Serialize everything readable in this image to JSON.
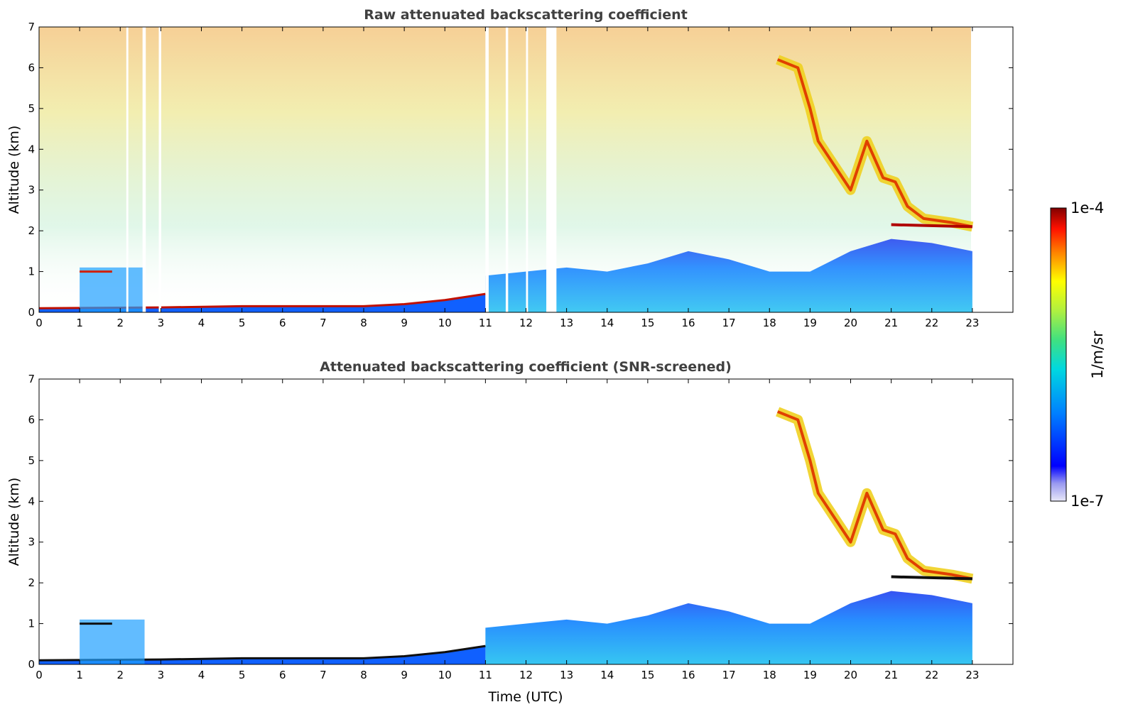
{
  "chart_data": [
    {
      "type": "heatmap",
      "title": "Raw attenuated backscattering coefficient",
      "xlabel": "",
      "ylabel": "Altitude (km)",
      "xlim": [
        0,
        24
      ],
      "ylim": [
        0,
        7
      ],
      "xticks": [
        "0",
        "1",
        "2",
        "3",
        "4",
        "5",
        "6",
        "7",
        "8",
        "9",
        "10",
        "11",
        "12",
        "13",
        "14",
        "15",
        "16",
        "17",
        "18",
        "19",
        "20",
        "21",
        "22",
        "23"
      ],
      "yticks": [
        "0",
        "1",
        "2",
        "3",
        "4",
        "5",
        "6",
        "7"
      ],
      "data_end_hour": 23,
      "features": {
        "surface_layer": [
          [
            0,
            0.1
          ],
          [
            3,
            0.12
          ],
          [
            5,
            0.15
          ],
          [
            8,
            0.15
          ],
          [
            9,
            0.2
          ],
          [
            10,
            0.3
          ],
          [
            11,
            0.45
          ]
        ],
        "high_cloud": [
          [
            18.2,
            6.2
          ],
          [
            18.7,
            6.0
          ],
          [
            19.0,
            5.0
          ],
          [
            19.2,
            4.2
          ],
          [
            19.6,
            3.6
          ],
          [
            20.0,
            3.0
          ],
          [
            20.4,
            4.2
          ],
          [
            20.8,
            3.3
          ],
          [
            21.1,
            3.2
          ],
          [
            21.4,
            2.6
          ],
          [
            21.8,
            2.3
          ],
          [
            22.5,
            2.2
          ],
          [
            23.0,
            2.1
          ]
        ],
        "boundary_layer_top": [
          [
            11,
            0.9
          ],
          [
            13,
            1.1
          ],
          [
            14,
            1.0
          ],
          [
            15,
            1.2
          ],
          [
            16,
            1.5
          ],
          [
            17,
            1.3
          ],
          [
            18,
            1.0
          ],
          [
            19,
            1.0
          ],
          [
            20,
            1.5
          ],
          [
            21,
            1.8
          ],
          [
            22,
            1.7
          ],
          [
            23,
            1.5
          ]
        ]
      }
    },
    {
      "type": "heatmap",
      "title": "Attenuated backscattering coefficient (SNR-screened)",
      "xlabel": "Time (UTC)",
      "ylabel": "Altitude (km)",
      "xlim": [
        0,
        24
      ],
      "ylim": [
        0,
        7
      ],
      "xticks": [
        "0",
        "1",
        "2",
        "3",
        "4",
        "5",
        "6",
        "7",
        "8",
        "9",
        "10",
        "11",
        "12",
        "13",
        "14",
        "15",
        "16",
        "17",
        "18",
        "19",
        "20",
        "21",
        "22",
        "23"
      ],
      "yticks": [
        "0",
        "1",
        "2",
        "3",
        "4",
        "5",
        "6",
        "7"
      ],
      "data_end_hour": 23
    }
  ],
  "colorbar": {
    "max_label": "1e-4",
    "min_label": "1e-7",
    "unit_label": "1/m/sr",
    "colormap": "jet"
  }
}
